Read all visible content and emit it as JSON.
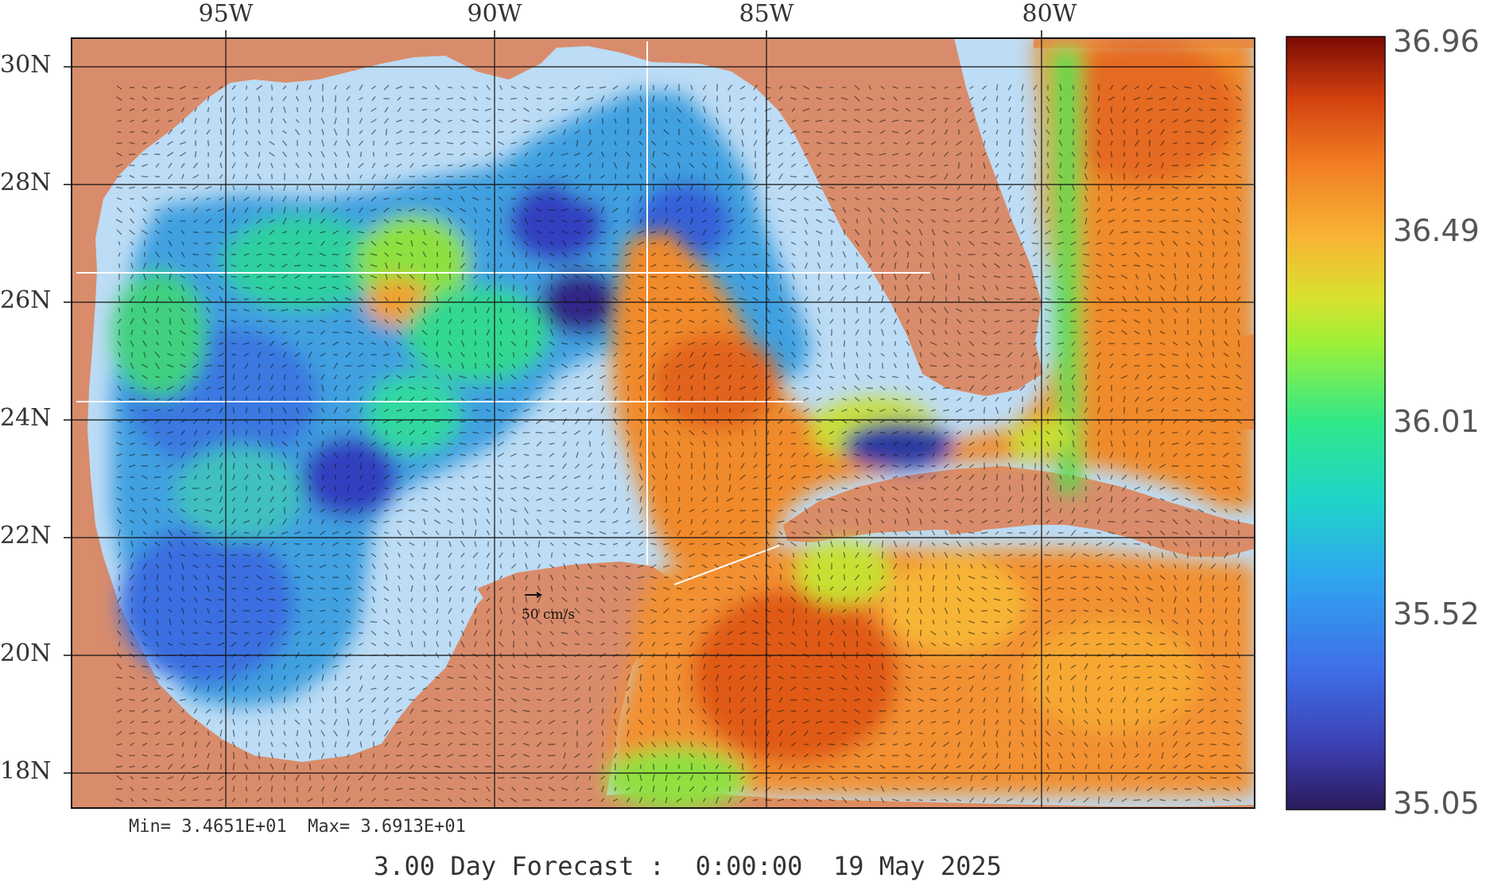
{
  "map": {
    "lon_labels": [
      "95W",
      "90W",
      "85W",
      "80W"
    ],
    "lat_labels": [
      "30N",
      "28N",
      "26N",
      "24N",
      "22N",
      "20N",
      "18N"
    ],
    "lon_range": [
      -97.6,
      -75.6
    ],
    "lat_range": [
      17.6,
      30.5
    ],
    "scale_vector_label": "50 cm/s",
    "land_color": "#d98c6b",
    "shelf_color": "#bddcf5"
  },
  "colorbar": {
    "values": [
      "36.96",
      "36.49",
      "36.01",
      "35.52",
      "35.05"
    ],
    "min": 35.05,
    "max": 36.96
  },
  "stats": {
    "text": "Min= 3.4651E+01  Max= 3.6913E+01"
  },
  "footer": {
    "text": "3.00 Day Forecast :  0:00:00  19 May 2025"
  }
}
